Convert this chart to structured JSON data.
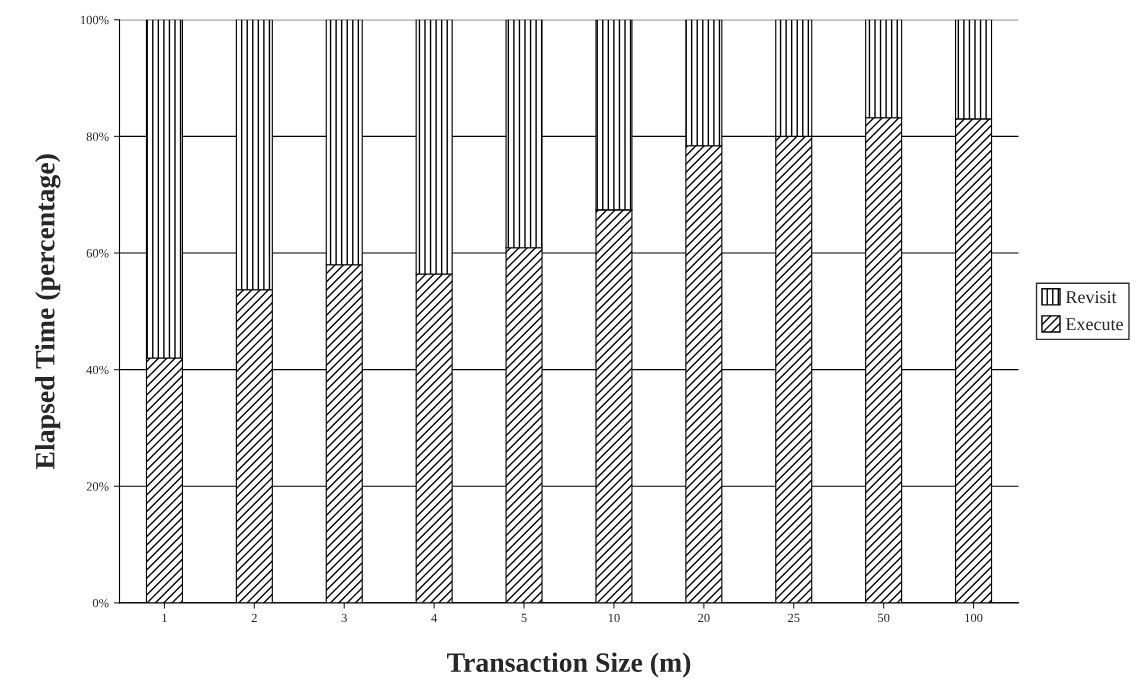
{
  "chart_data": {
    "type": "bar",
    "stacked": true,
    "xlabel": "Transaction Size (m)",
    "ylabel": "Elapsed Time (percentage)",
    "categories": [
      "1",
      "2",
      "3",
      "4",
      "5",
      "10",
      "20",
      "25",
      "50",
      "100"
    ],
    "series": [
      {
        "name": "Execute",
        "color": "#000000",
        "values": [
          42,
          53.7,
          58,
          56.4,
          60.9,
          67.4,
          78.4,
          80,
          83.2,
          83
        ]
      },
      {
        "name": "Revisit",
        "color": "#000000",
        "values": [
          58,
          46.3,
          42,
          43.6,
          39.1,
          32.6,
          21.6,
          20,
          16.8,
          17
        ]
      }
    ],
    "ylim": [
      0,
      100
    ],
    "yticks": [
      {
        "value": 0,
        "label": "0%"
      },
      {
        "value": 20,
        "label": "20%"
      },
      {
        "value": 40,
        "label": "40%"
      },
      {
        "value": 60,
        "label": "60%"
      },
      {
        "value": 80,
        "label": "80%"
      },
      {
        "value": 100,
        "label": "100%"
      }
    ],
    "grid": "y",
    "legend": "right"
  }
}
